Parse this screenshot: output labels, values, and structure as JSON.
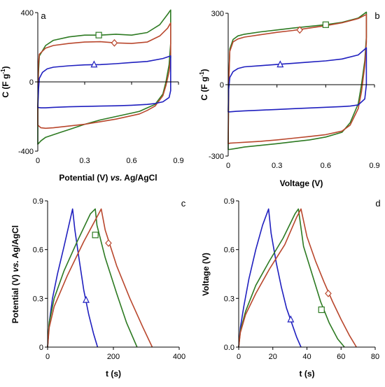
{
  "colors": {
    "blue": "#1f1fbf",
    "green": "#2d7a22",
    "red": "#b9472d",
    "axis": "#000000"
  },
  "chart_data": [
    {
      "id": "a",
      "type": "line",
      "panel_label": "a",
      "xlabel_parts": [
        "Potential (V) ",
        "vs.",
        " Ag/AgCl"
      ],
      "ylabel": "C (F g",
      "ylabel_sup": "-1",
      "ylabel_end": ")",
      "xlim": [
        0,
        0.9
      ],
      "ylim": [
        -400,
        400
      ],
      "xticks": [
        "0",
        "0.3",
        "0.6",
        "0.9"
      ],
      "xtick_values": [
        0,
        0.3,
        0.6,
        0.9
      ],
      "yticks": [
        "400",
        "0",
        "-400"
      ],
      "ytick_values": [
        400,
        0,
        -400
      ],
      "series": [
        {
          "color": "green",
          "marker": "square",
          "marker_at": [
            0.39,
            270
          ],
          "x": [
            0.0,
            0.004,
            0.01,
            0.05,
            0.1,
            0.2,
            0.3,
            0.4,
            0.5,
            0.6,
            0.7,
            0.78,
            0.83,
            0.85,
            0.85,
            0.84,
            0.82,
            0.8,
            0.75,
            0.7,
            0.65,
            0.6,
            0.5,
            0.4,
            0.3,
            0.2,
            0.15,
            0.1,
            0.05,
            0.02,
            0.0,
            0.0
          ],
          "y": [
            -150,
            50,
            150,
            210,
            240,
            260,
            270,
            270,
            275,
            270,
            285,
            330,
            390,
            415,
            220,
            100,
            0,
            -70,
            -130,
            -150,
            -170,
            -180,
            -200,
            -220,
            -245,
            -275,
            -290,
            -305,
            -320,
            -340,
            -360,
            -150
          ]
        },
        {
          "color": "red",
          "marker": "diamond",
          "marker_at": [
            0.49,
            225
          ],
          "x": [
            0.0,
            0.004,
            0.01,
            0.05,
            0.1,
            0.2,
            0.3,
            0.4,
            0.5,
            0.6,
            0.7,
            0.78,
            0.83,
            0.85,
            0.85,
            0.84,
            0.82,
            0.8,
            0.75,
            0.7,
            0.65,
            0.6,
            0.5,
            0.4,
            0.3,
            0.2,
            0.1,
            0.05,
            0.02,
            0.0,
            0.0
          ],
          "y": [
            -170,
            100,
            160,
            195,
            210,
            222,
            230,
            232,
            225,
            222,
            230,
            265,
            310,
            340,
            140,
            60,
            -20,
            -80,
            -140,
            -165,
            -185,
            -195,
            -215,
            -230,
            -245,
            -255,
            -265,
            -268,
            -265,
            -250,
            -170
          ]
        },
        {
          "color": "blue",
          "marker": "triangle",
          "marker_at": [
            0.36,
            100
          ],
          "x": [
            0.0,
            0.005,
            0.01,
            0.03,
            0.06,
            0.1,
            0.2,
            0.3,
            0.4,
            0.5,
            0.6,
            0.7,
            0.8,
            0.85,
            0.85,
            0.84,
            0.8,
            0.75,
            0.7,
            0.6,
            0.5,
            0.4,
            0.3,
            0.2,
            0.1,
            0.05,
            0.02,
            0.0,
            0.0
          ],
          "y": [
            -150,
            -40,
            20,
            55,
            75,
            85,
            93,
            98,
            100,
            105,
            112,
            118,
            135,
            150,
            -50,
            -90,
            -115,
            -125,
            -130,
            -135,
            -138,
            -140,
            -142,
            -144,
            -147,
            -150,
            -150,
            -148,
            -150
          ]
        }
      ]
    },
    {
      "id": "b",
      "type": "line",
      "panel_label": "b",
      "xlabel_parts": [
        "Voltage (V)"
      ],
      "ylabel": "C (F g",
      "ylabel_sup": "-1",
      "ylabel_end": ")",
      "xlim": [
        0,
        0.9
      ],
      "ylim": [
        -300,
        300
      ],
      "xticks": [
        "0",
        "0.3",
        "0.6",
        "0.9"
      ],
      "xtick_values": [
        0,
        0.3,
        0.6,
        0.9
      ],
      "yticks": [
        "300",
        "0",
        "-300"
      ],
      "ytick_values": [
        300,
        0,
        -300
      ],
      "series": [
        {
          "color": "green",
          "marker": "square",
          "marker_at": [
            0.6,
            252
          ],
          "x": [
            0.0,
            0.003,
            0.01,
            0.03,
            0.06,
            0.1,
            0.2,
            0.3,
            0.4,
            0.5,
            0.6,
            0.7,
            0.8,
            0.85,
            0.85,
            0.84,
            0.82,
            0.8,
            0.75,
            0.7,
            0.6,
            0.5,
            0.4,
            0.3,
            0.2,
            0.1,
            0.05,
            0.01,
            0.0,
            0.0
          ],
          "y": [
            -270,
            0,
            150,
            190,
            205,
            212,
            222,
            230,
            238,
            245,
            252,
            262,
            280,
            305,
            200,
            100,
            0,
            -80,
            -160,
            -200,
            -220,
            -232,
            -240,
            -248,
            -255,
            -262,
            -268,
            -272,
            -272,
            -270
          ]
        },
        {
          "color": "red",
          "marker": "diamond",
          "marker_at": [
            0.44,
            230
          ],
          "x": [
            0.0,
            0.003,
            0.01,
            0.03,
            0.06,
            0.1,
            0.2,
            0.3,
            0.4,
            0.5,
            0.6,
            0.7,
            0.8,
            0.85,
            0.85,
            0.84,
            0.82,
            0.8,
            0.75,
            0.7,
            0.6,
            0.5,
            0.4,
            0.3,
            0.2,
            0.1,
            0.05,
            0.01,
            0.0,
            0.0
          ],
          "y": [
            -245,
            0,
            140,
            180,
            192,
            200,
            210,
            220,
            228,
            238,
            248,
            260,
            278,
            295,
            180,
            80,
            -30,
            -100,
            -170,
            -195,
            -210,
            -218,
            -225,
            -232,
            -238,
            -242,
            -244,
            -246,
            -248,
            -245
          ]
        },
        {
          "color": "blue",
          "marker": "triangle",
          "marker_at": [
            0.32,
            85
          ],
          "x": [
            0.0,
            0.003,
            0.01,
            0.03,
            0.06,
            0.1,
            0.2,
            0.3,
            0.4,
            0.5,
            0.6,
            0.7,
            0.8,
            0.85,
            0.85,
            0.84,
            0.8,
            0.75,
            0.7,
            0.6,
            0.5,
            0.4,
            0.3,
            0.2,
            0.1,
            0.05,
            0.01,
            0.0,
            0.0
          ],
          "y": [
            -115,
            -20,
            30,
            55,
            68,
            75,
            80,
            85,
            90,
            95,
            100,
            108,
            125,
            155,
            0,
            -60,
            -85,
            -90,
            -92,
            -95,
            -98,
            -101,
            -104,
            -107,
            -110,
            -112,
            -114,
            -115,
            -115
          ]
        }
      ]
    },
    {
      "id": "c",
      "type": "line",
      "panel_label": "c",
      "xlabel_parts": [
        "t (s)"
      ],
      "ylabel_parts": [
        "Potential (V) ",
        "vs.",
        " Ag/AgCl"
      ],
      "xlim": [
        0,
        400
      ],
      "ylim": [
        0,
        0.9
      ],
      "xticks": [
        "0",
        "200",
        "400"
      ],
      "xtick_values": [
        0,
        200,
        400
      ],
      "yticks": [
        "0.9",
        "0.6",
        "0.3",
        "0"
      ],
      "ytick_values": [
        0.9,
        0.6,
        0.3,
        0
      ],
      "series": [
        {
          "color": "blue",
          "marker": "triangle",
          "marker_at": [
            117,
            0.29
          ],
          "x": [
            0,
            5,
            15,
            30,
            50,
            76,
            83,
            95,
            110,
            125,
            140,
            152
          ],
          "y": [
            0,
            0.15,
            0.3,
            0.45,
            0.62,
            0.85,
            0.72,
            0.55,
            0.35,
            0.2,
            0.08,
            0
          ]
        },
        {
          "color": "green",
          "marker": "square",
          "marker_at": [
            145,
            0.69
          ],
          "x": [
            0,
            5,
            20,
            50,
            90,
            130,
            145,
            150,
            175,
            210,
            240,
            272
          ],
          "y": [
            0,
            0.15,
            0.3,
            0.47,
            0.65,
            0.82,
            0.85,
            0.75,
            0.55,
            0.33,
            0.15,
            0
          ]
        },
        {
          "color": "red",
          "marker": "diamond",
          "marker_at": [
            185,
            0.64
          ],
          "x": [
            0,
            5,
            20,
            60,
            110,
            155,
            163,
            175,
            210,
            250,
            290,
            318
          ],
          "y": [
            0,
            0.12,
            0.25,
            0.44,
            0.65,
            0.82,
            0.85,
            0.72,
            0.5,
            0.3,
            0.12,
            0
          ]
        }
      ]
    },
    {
      "id": "d",
      "type": "line",
      "panel_label": "d",
      "xlabel_parts": [
        "t (s)"
      ],
      "ylabel_parts": [
        "Voltage (V)"
      ],
      "xlim": [
        0,
        80
      ],
      "ylim": [
        0,
        0.9
      ],
      "xticks": [
        "0",
        "20",
        "40",
        "60",
        "80"
      ],
      "xtick_values": [
        0,
        20,
        40,
        60,
        80
      ],
      "yticks": [
        "0.9",
        "0.6",
        "0.3",
        "0.0"
      ],
      "ytick_values": [
        0.9,
        0.6,
        0.3,
        0
      ],
      "series": [
        {
          "color": "blue",
          "marker": "triangle",
          "marker_at": [
            30.5,
            0.17
          ],
          "x": [
            0,
            1,
            3,
            6,
            10,
            14,
            17.5,
            19,
            22,
            25,
            28,
            31,
            34,
            36.5
          ],
          "y": [
            0,
            0.12,
            0.25,
            0.42,
            0.6,
            0.75,
            0.85,
            0.7,
            0.52,
            0.37,
            0.24,
            0.15,
            0.06,
            0
          ]
        },
        {
          "color": "green",
          "marker": "square",
          "marker_at": [
            48.5,
            0.23
          ],
          "x": [
            0,
            1,
            4,
            10,
            18,
            26,
            33,
            35,
            38,
            43,
            48,
            53,
            58,
            62
          ],
          "y": [
            0,
            0.1,
            0.22,
            0.38,
            0.53,
            0.67,
            0.82,
            0.85,
            0.62,
            0.45,
            0.28,
            0.15,
            0.05,
            0
          ]
        },
        {
          "color": "red",
          "marker": "diamond",
          "marker_at": [
            52.5,
            0.33
          ],
          "x": [
            0,
            1,
            4,
            10,
            18,
            27,
            34,
            36.5,
            40,
            45,
            50,
            55,
            60,
            65,
            69
          ],
          "y": [
            0,
            0.09,
            0.2,
            0.33,
            0.48,
            0.63,
            0.8,
            0.85,
            0.68,
            0.53,
            0.4,
            0.28,
            0.17,
            0.07,
            0
          ]
        }
      ]
    }
  ]
}
